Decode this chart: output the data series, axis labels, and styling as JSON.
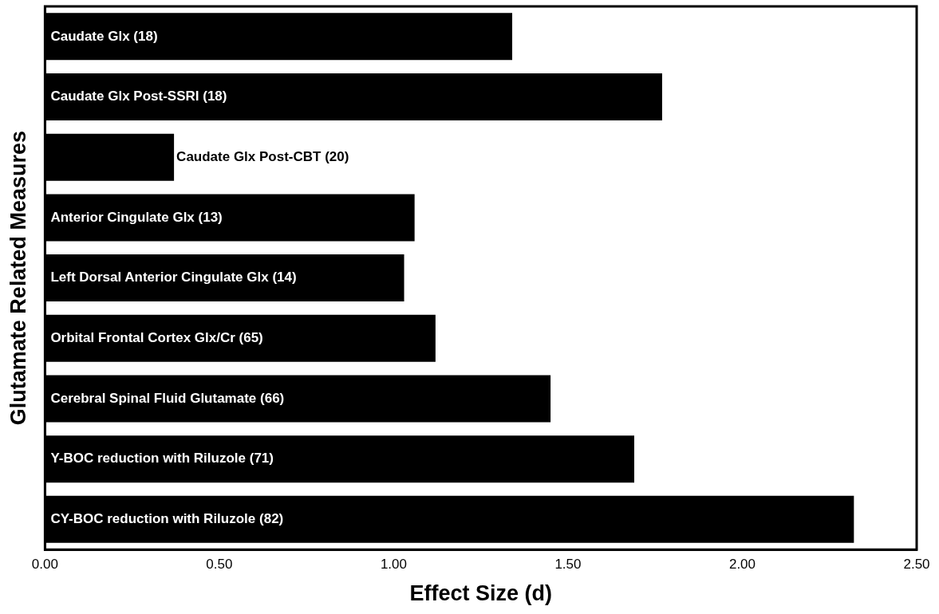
{
  "chart_data": {
    "type": "bar",
    "orientation": "horizontal",
    "xlabel": "Effect Size (d)",
    "ylabel": "Glutamate Related Measures",
    "categories": [
      "Caudate Glx (18)",
      "Caudate Glx Post-SSRI (18)",
      "Caudate Glx Post-CBT (20)",
      "Anterior Cingulate Glx (13)",
      "Left Dorsal Anterior Cingulate Glx (14)",
      "Orbital Frontal Cortex Glx/Cr (65)",
      "Cerebral Spinal Fluid Glutamate (66)",
      "Y-BOC reduction with Riluzole (71)",
      "CY-BOC reduction with Riluzole (82)"
    ],
    "values": [
      1.34,
      1.77,
      0.37,
      1.06,
      1.03,
      1.12,
      1.45,
      1.69,
      2.32
    ],
    "color": "#000000",
    "xlim": [
      0,
      2.5
    ],
    "xticks": [
      {
        "value": 0,
        "label": "0.00"
      },
      {
        "value": 0.5,
        "label": "0.50"
      },
      {
        "value": 1,
        "label": "1.00"
      },
      {
        "value": 1.5,
        "label": "1.50"
      },
      {
        "value": 2,
        "label": "2.00"
      },
      {
        "value": 2.5,
        "label": "2.50"
      }
    ],
    "grid": false,
    "legend": false
  }
}
